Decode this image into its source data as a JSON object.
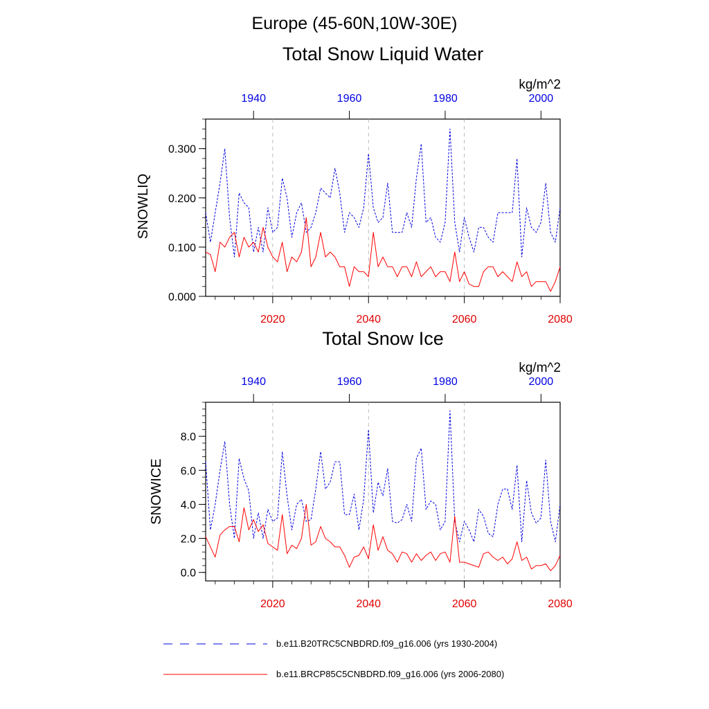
{
  "figure": {
    "region_title": "Europe (45-60N,10W-30E)"
  },
  "chart_data": [
    {
      "type": "line",
      "title": "Total Snow Liquid Water",
      "ylabel": "SNOWLIQ",
      "units": "kg/m^2",
      "ylim": [
        0,
        0.36
      ],
      "yticks": [
        0.0,
        0.1,
        0.2,
        0.3
      ],
      "ytick_labels": [
        "0.000",
        "0.100",
        "0.200",
        "0.300"
      ],
      "bottom_axis": {
        "range": [
          2006,
          2080
        ],
        "ticks": [
          2020,
          2040,
          2060,
          2080
        ],
        "tick_labels": [
          "2020",
          "2040",
          "2060",
          "2080"
        ],
        "color": "#e00000"
      },
      "top_axis": {
        "range": [
          1930,
          2004
        ],
        "ticks": [
          1940,
          1960,
          1980,
          2000
        ],
        "tick_labels": [
          "1940",
          "1960",
          "1980",
          "2000"
        ],
        "color": "#0000e0"
      },
      "series": [
        {
          "name": "b.e11.B20TRC5CNBDRD.f09_g16.006 (yrs 1930-2004)",
          "axis": "top",
          "color": "#0000e0",
          "style": "dashed",
          "x_start": 1930,
          "values": [
            0.17,
            0.11,
            0.17,
            0.23,
            0.3,
            0.16,
            0.08,
            0.21,
            0.19,
            0.18,
            0.09,
            0.14,
            0.09,
            0.18,
            0.13,
            0.14,
            0.24,
            0.2,
            0.12,
            0.17,
            0.19,
            0.13,
            0.14,
            0.17,
            0.22,
            0.21,
            0.2,
            0.26,
            0.21,
            0.13,
            0.17,
            0.16,
            0.14,
            0.18,
            0.29,
            0.18,
            0.15,
            0.16,
            0.23,
            0.13,
            0.13,
            0.13,
            0.17,
            0.14,
            0.24,
            0.31,
            0.15,
            0.16,
            0.12,
            0.11,
            0.15,
            0.34,
            0.15,
            0.09,
            0.16,
            0.12,
            0.09,
            0.14,
            0.14,
            0.12,
            0.11,
            0.17,
            0.17,
            0.17,
            0.17,
            0.28,
            0.08,
            0.18,
            0.14,
            0.13,
            0.15,
            0.23,
            0.13,
            0.11,
            0.18
          ]
        },
        {
          "name": "b.e11.BRCP85C5CNBDRD.f09_g16.006 (yrs 2006-2080)",
          "axis": "bottom",
          "color": "#ff0000",
          "style": "solid",
          "x_start": 2006,
          "values": [
            0.09,
            0.085,
            0.05,
            0.11,
            0.1,
            0.12,
            0.13,
            0.08,
            0.12,
            0.1,
            0.11,
            0.09,
            0.14,
            0.1,
            0.08,
            0.07,
            0.11,
            0.05,
            0.08,
            0.07,
            0.09,
            0.16,
            0.06,
            0.08,
            0.13,
            0.08,
            0.09,
            0.08,
            0.06,
            0.06,
            0.02,
            0.06,
            0.05,
            0.05,
            0.04,
            0.13,
            0.06,
            0.08,
            0.06,
            0.06,
            0.04,
            0.06,
            0.06,
            0.04,
            0.07,
            0.04,
            0.05,
            0.06,
            0.04,
            0.05,
            0.05,
            0.03,
            0.09,
            0.03,
            0.05,
            0.025,
            0.02,
            0.02,
            0.05,
            0.06,
            0.06,
            0.04,
            0.05,
            0.04,
            0.03,
            0.07,
            0.04,
            0.05,
            0.02,
            0.03,
            0.03,
            0.03,
            0.01,
            0.03,
            0.06
          ]
        }
      ]
    },
    {
      "type": "line",
      "title": "Total Snow Ice",
      "ylabel": "SNOWICE",
      "units": "kg/m^2",
      "ylim": [
        -0.5,
        10
      ],
      "yticks": [
        0.0,
        2.0,
        4.0,
        6.0,
        8.0
      ],
      "ytick_labels": [
        "0.0",
        "2.0",
        "4.0",
        "6.0",
        "8.0"
      ],
      "bottom_axis": {
        "range": [
          2006,
          2080
        ],
        "ticks": [
          2020,
          2040,
          2060,
          2080
        ],
        "tick_labels": [
          "2020",
          "2040",
          "2060",
          "2080"
        ],
        "color": "#e00000"
      },
      "top_axis": {
        "range": [
          1930,
          2004
        ],
        "ticks": [
          1940,
          1960,
          1980,
          2000
        ],
        "tick_labels": [
          "1940",
          "1960",
          "1980",
          "2000"
        ],
        "color": "#0000e0"
      },
      "series": [
        {
          "name": "b.e11.B20TRC5CNBDRD.f09_g16.006 (yrs 1930-2004)",
          "axis": "top",
          "color": "#0000e0",
          "style": "dashed",
          "x_start": 1930,
          "values": [
            6.5,
            2.5,
            4.0,
            6.0,
            7.7,
            4.0,
            2.0,
            6.7,
            5.5,
            4.8,
            2.0,
            3.5,
            2.0,
            3.7,
            3.0,
            3.2,
            7.1,
            4.5,
            2.5,
            4.0,
            4.3,
            3.0,
            3.1,
            4.9,
            7.1,
            4.9,
            5.3,
            6.5,
            6.5,
            3.4,
            3.4,
            4.6,
            2.5,
            4.3,
            8.4,
            3.5,
            5.3,
            4.5,
            6.1,
            3.0,
            2.9,
            3.1,
            4.0,
            3.0,
            6.7,
            7.3,
            3.7,
            4.2,
            4.0,
            2.5,
            3.0,
            9.5,
            3.0,
            1.8,
            3.0,
            2.5,
            1.8,
            3.7,
            3.3,
            2.3,
            2.1,
            4.0,
            4.9,
            4.9,
            3.7,
            6.3,
            1.8,
            5.4,
            3.5,
            2.9,
            3.2,
            6.6,
            3.0,
            1.8,
            4.0
          ]
        },
        {
          "name": "b.e11.BRCP85C5CNBDRD.f09_g16.006 (yrs 2006-2080)",
          "axis": "bottom",
          "color": "#ff0000",
          "style": "solid",
          "x_start": 2006,
          "values": [
            2.1,
            1.5,
            0.9,
            2.2,
            2.5,
            2.7,
            2.7,
            1.8,
            3.8,
            2.5,
            3.1,
            2.4,
            2.8,
            1.7,
            1.5,
            1.3,
            3.4,
            1.1,
            1.6,
            1.4,
            2.0,
            4.0,
            1.6,
            1.8,
            2.7,
            2.0,
            1.8,
            1.5,
            1.5,
            1.0,
            0.3,
            0.9,
            1.0,
            1.5,
            0.8,
            2.8,
            1.3,
            2.1,
            1.3,
            1.1,
            0.6,
            1.2,
            1.1,
            0.6,
            1.1,
            0.7,
            1.0,
            1.2,
            0.7,
            1.1,
            1.2,
            0.6,
            3.3,
            0.6,
            0.6,
            0.5,
            0.4,
            0.3,
            1.1,
            1.2,
            0.9,
            0.7,
            0.9,
            0.5,
            0.8,
            1.8,
            0.7,
            0.9,
            0.2,
            0.4,
            0.4,
            0.5,
            0.1,
            0.4,
            1.0
          ]
        }
      ]
    }
  ],
  "legend": {
    "entries": [
      {
        "label": "b.e11.B20TRC5CNBDRD.f09_g16.006 (yrs 1930-2004)",
        "color": "#0000e0",
        "style": "dashed"
      },
      {
        "label": "b.e11.BRCP85C5CNBDRD.f09_g16.006 (yrs 2006-2080)",
        "color": "#ff0000",
        "style": "solid"
      }
    ]
  }
}
